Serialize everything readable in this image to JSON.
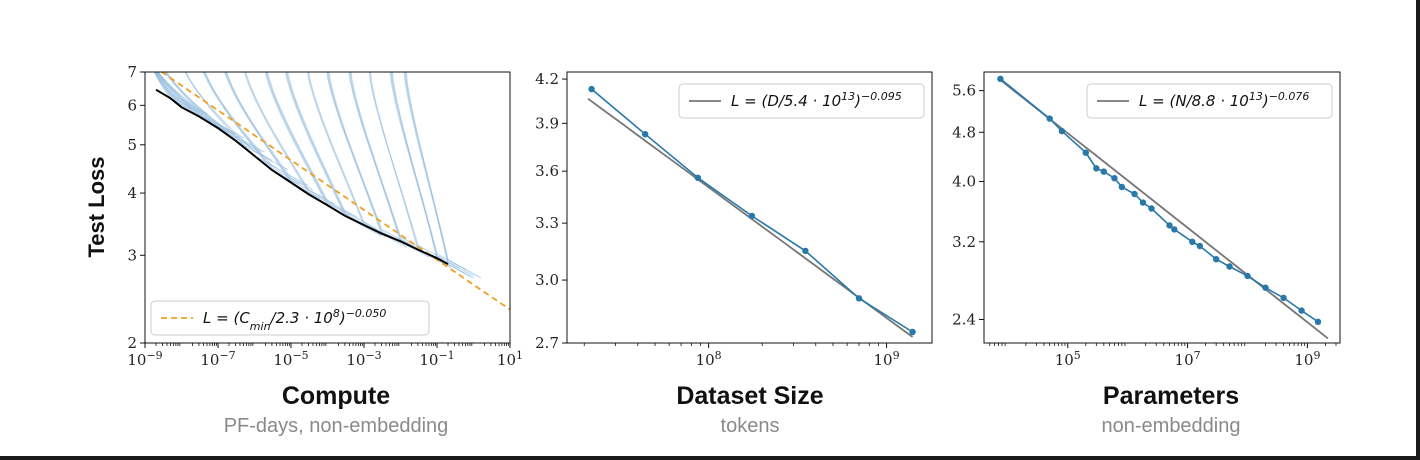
{
  "ylabel": "Test Loss",
  "chart_data": [
    {
      "type": "line",
      "title": "Compute",
      "subtitle": "PF-days, non-embedding",
      "xscale": "log",
      "yscale": "log",
      "xlim": [
        1e-09,
        10
      ],
      "ylim": [
        2,
        7
      ],
      "x_ticks": [
        {
          "v": 1e-09,
          "base": "10",
          "exp": "−9"
        },
        {
          "v": 1e-07,
          "base": "10",
          "exp": "−7"
        },
        {
          "v": 1e-05,
          "base": "10",
          "exp": "−5"
        },
        {
          "v": 0.001,
          "base": "10",
          "exp": "−3"
        },
        {
          "v": 0.1,
          "base": "10",
          "exp": "−1"
        },
        {
          "v": 10,
          "base": "10",
          "exp": "1"
        }
      ],
      "y_ticks": [
        {
          "v": 2,
          "label": "2"
        },
        {
          "v": 3,
          "label": "3"
        },
        {
          "v": 4,
          "label": "4"
        },
        {
          "v": 5,
          "label": "5"
        },
        {
          "v": 6,
          "label": "6"
        },
        {
          "v": 7,
          "label": "7"
        }
      ],
      "legend": {
        "position": "bottom-left",
        "label_main": "L = (C",
        "label_sub": "min",
        "label_rest": "/2.3 · 10",
        "label_sup1": "8",
        "label_end": ")",
        "label_sup2": "−0.050"
      },
      "fit": {
        "coef": 230000000.0,
        "exp": -0.05,
        "x_range": [
          1e-09,
          10
        ],
        "color": "#f0a020"
      },
      "frontier": {
        "color": "#000000",
        "x": [
          2e-09,
          5e-09,
          1e-08,
          3e-08,
          1e-07,
          3e-07,
          1e-06,
          3e-06,
          1e-05,
          3e-05,
          0.0001,
          0.0003,
          0.001,
          0.003,
          0.01,
          0.03,
          0.1,
          0.2
        ],
        "y": [
          6.45,
          6.2,
          5.95,
          5.7,
          5.4,
          5.1,
          4.75,
          4.45,
          4.2,
          3.98,
          3.78,
          3.6,
          3.45,
          3.32,
          3.2,
          3.08,
          2.96,
          2.88
        ]
      },
      "curves_color": "#8db8dd",
      "curves_count": 46
    },
    {
      "type": "line",
      "title": "Dataset Size",
      "subtitle": "tokens",
      "xscale": "log",
      "yscale": "log",
      "xlim": [
        16000000.0,
        1800000000.0
      ],
      "ylim": [
        2.7,
        4.25
      ],
      "x_ticks": [
        {
          "v": 100000000.0,
          "base": "10",
          "exp": "8"
        },
        {
          "v": 1000000000.0,
          "base": "10",
          "exp": "9"
        }
      ],
      "y_ticks": [
        {
          "v": 2.7,
          "label": "2.7"
        },
        {
          "v": 3.0,
          "label": "3.0"
        },
        {
          "v": 3.3,
          "label": "3.3"
        },
        {
          "v": 3.6,
          "label": "3.6"
        },
        {
          "v": 3.9,
          "label": "3.9"
        },
        {
          "v": 4.2,
          "label": "4.2"
        }
      ],
      "legend": {
        "position": "top-right",
        "label_main": "L = (D/5.4 · 10",
        "label_sup1": "13",
        "label_end": ")",
        "label_sup2": "−0.095"
      },
      "fit": {
        "coef": 54000000000000.0,
        "exp": -0.095,
        "x_range": [
          21000000.0,
          1400000000.0
        ],
        "color": "#777777"
      },
      "series": [
        {
          "x": [
            22000000.0,
            44000000.0,
            87000000.0,
            175000000.0,
            350000000.0,
            700000000.0,
            1400000000.0
          ],
          "y": [
            4.13,
            3.83,
            3.56,
            3.34,
            3.15,
            2.91,
            2.75
          ],
          "color": "#2878a8"
        }
      ]
    },
    {
      "type": "line",
      "title": "Parameters",
      "subtitle": "non-embedding",
      "xscale": "log",
      "yscale": "log",
      "xlim": [
        4000.0,
        3500000000.0
      ],
      "ylim": [
        2.2,
        6.0
      ],
      "x_ticks": [
        {
          "v": 100000.0,
          "base": "10",
          "exp": "5"
        },
        {
          "v": 10000000.0,
          "base": "10",
          "exp": "7"
        },
        {
          "v": 1000000000.0,
          "base": "10",
          "exp": "9"
        }
      ],
      "y_ticks": [
        {
          "v": 2.4,
          "label": "2.4"
        },
        {
          "v": 3.2,
          "label": "3.2"
        },
        {
          "v": 4.0,
          "label": "4.0"
        },
        {
          "v": 4.8,
          "label": "4.8"
        },
        {
          "v": 5.6,
          "label": "5.6"
        }
      ],
      "legend": {
        "position": "top-right",
        "label_main": "L = (N/8.8 · 10",
        "label_sup1": "13",
        "label_end": ")",
        "label_sup2": "−0.076"
      },
      "fit": {
        "coef": 88000000000000.0,
        "exp": -0.076,
        "x_range": [
          7000.0,
          2200000000.0
        ],
        "color": "#777777"
      },
      "series": [
        {
          "x": [
            7500.0,
            50000.0,
            80000.0,
            200000.0,
            300000.0,
            400000.0,
            600000.0,
            800000.0,
            1300000.0,
            1800000.0,
            2500000.0,
            5000000.0,
            6000000.0,
            12000000.0,
            16000000.0,
            30000000.0,
            50000000.0,
            100000000.0,
            200000000.0,
            400000000.0,
            800000000.0,
            1500000000.0
          ],
          "y": [
            5.85,
            5.05,
            4.82,
            4.45,
            4.2,
            4.15,
            4.05,
            3.92,
            3.82,
            3.7,
            3.62,
            3.4,
            3.35,
            3.2,
            3.15,
            3.0,
            2.92,
            2.82,
            2.7,
            2.6,
            2.48,
            2.38
          ],
          "color": "#2878a8"
        }
      ]
    }
  ]
}
